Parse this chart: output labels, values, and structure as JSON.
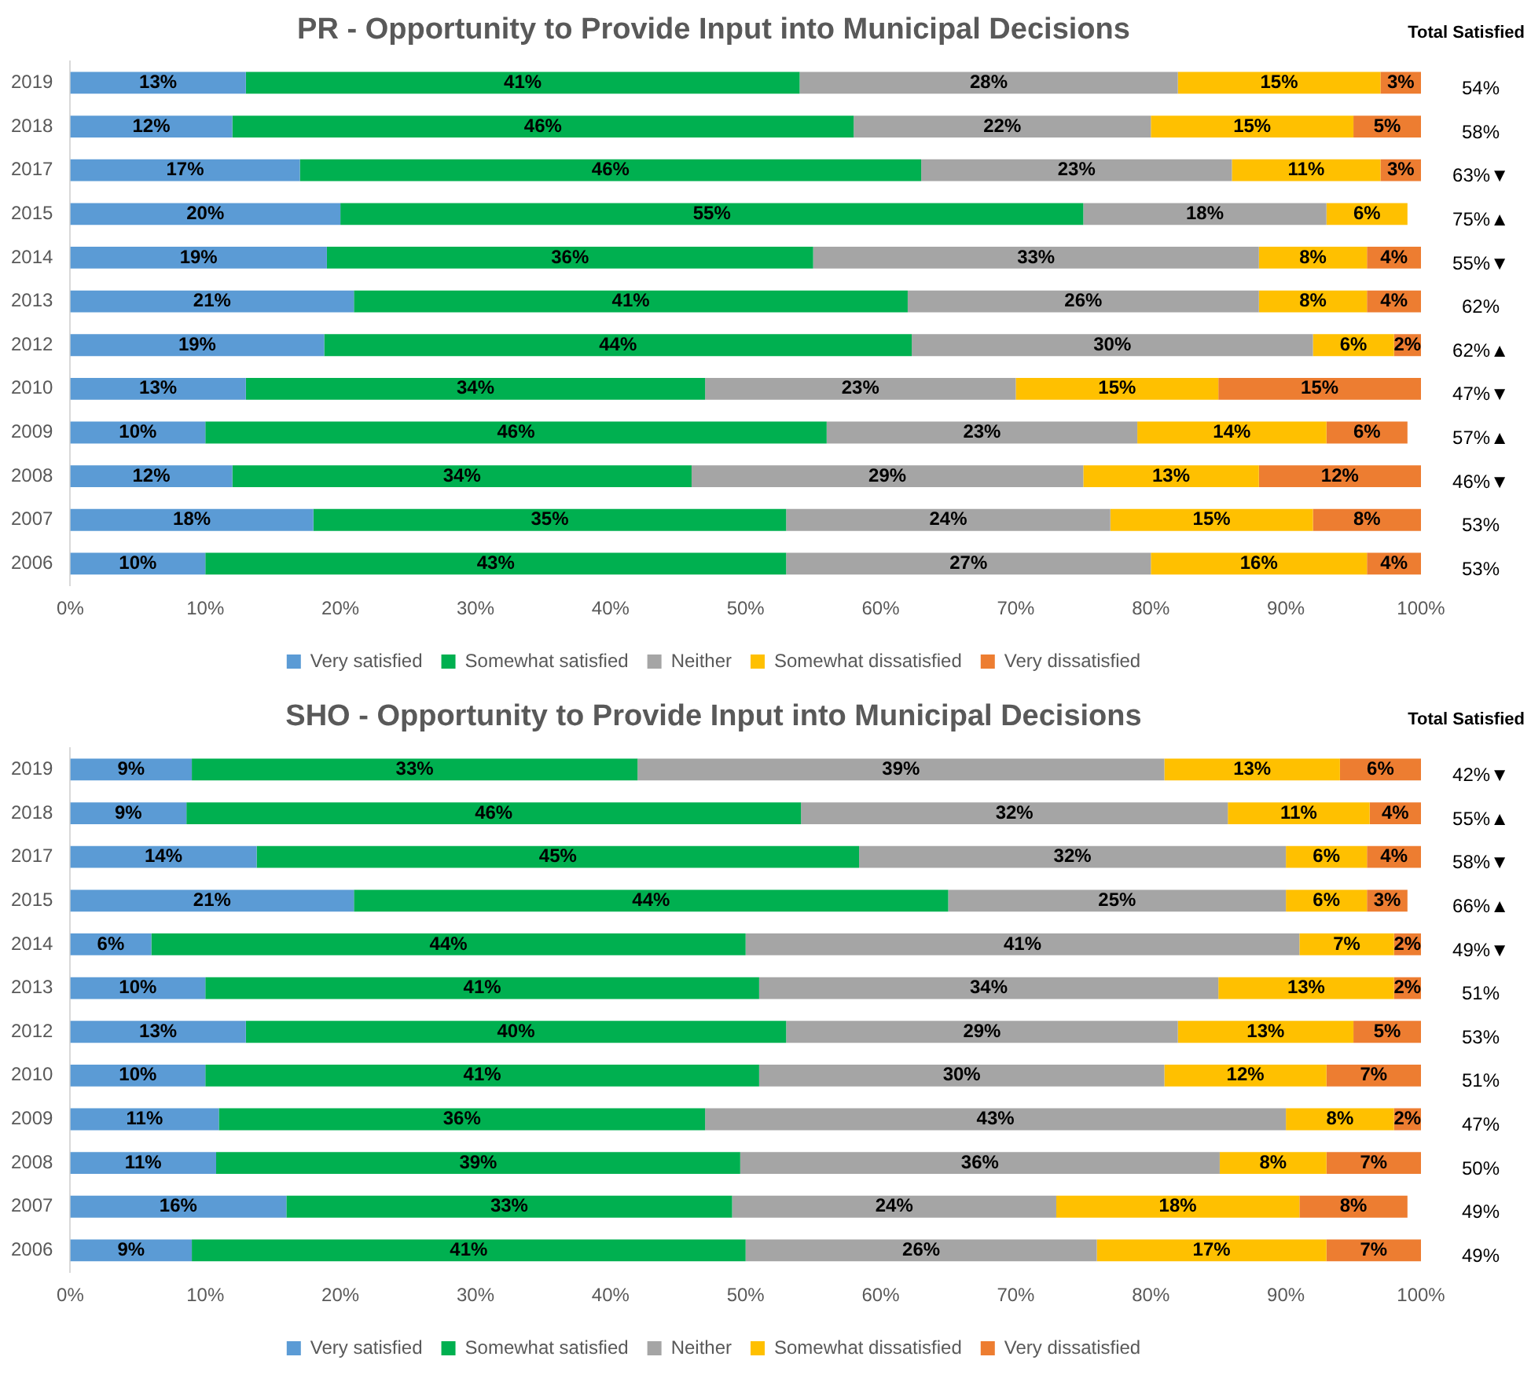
{
  "chart_data": [
    {
      "type": "bar",
      "title": "PR - Opportunity to Provide Input into Municipal Decisions",
      "orientation": "horizontal",
      "stacked": true,
      "legend": "bottom",
      "categories": [
        "2019",
        "2018",
        "2017",
        "2015",
        "2014",
        "2013",
        "2012",
        "2010",
        "2009",
        "2008",
        "2007",
        "2006"
      ],
      "series": [
        {
          "name": "Very satisfied",
          "color": "#5b9bd5",
          "values": [
            13,
            12,
            17,
            20,
            19,
            21,
            18.8,
            13,
            10,
            12,
            18,
            10
          ],
          "value_labels": [
            "13%",
            "12%",
            "17%",
            "20%",
            "19%",
            "21%",
            "19%",
            "13%",
            "10%",
            "12%",
            "18%",
            "10%"
          ]
        },
        {
          "name": "Somewhat satisfied",
          "color": "#00b050",
          "values": [
            41,
            46,
            46,
            55,
            36,
            41,
            43.5,
            34,
            46,
            34,
            35,
            43
          ],
          "value_labels": [
            "41%",
            "46%",
            "46%",
            "55%",
            "36%",
            "41%",
            "44%",
            "34%",
            "46%",
            "34%",
            "35%",
            "43%"
          ]
        },
        {
          "name": "Neither",
          "color": "#a5a5a5",
          "values": [
            28,
            22,
            23,
            18,
            33,
            26,
            29.7,
            23,
            23,
            29,
            24,
            27
          ],
          "value_labels": [
            "28%",
            "22%",
            "23%",
            "18%",
            "33%",
            "26%",
            "30%",
            "23%",
            "23%",
            "29%",
            "24%",
            "27%"
          ]
        },
        {
          "name": "Somewhat dissatisfied",
          "color": "#ffc000",
          "values": [
            15,
            15,
            11,
            6,
            8,
            8,
            6,
            15,
            14,
            13,
            15,
            16
          ],
          "value_labels": [
            "15%",
            "15%",
            "11%",
            "6%",
            "8%",
            "8%",
            "6%",
            "15%",
            "14%",
            "13%",
            "15%",
            "16%"
          ]
        },
        {
          "name": "Very dissatisfied",
          "color": "#ed7d31",
          "values": [
            3,
            5,
            3,
            null,
            4,
            4,
            2,
            15,
            6,
            12,
            8,
            4
          ],
          "value_labels": [
            "3%",
            "5%",
            "3%",
            null,
            "4%",
            "4%",
            "2%",
            "15%",
            "6%",
            "12%",
            "8%",
            "4%"
          ]
        }
      ],
      "xlim": [
        0,
        100
      ],
      "xticks": [
        {
          "value": 0,
          "label": "0%"
        },
        {
          "value": 10,
          "label": "10%"
        },
        {
          "value": 20,
          "label": "20%"
        },
        {
          "value": 30,
          "label": "30%"
        },
        {
          "value": 40,
          "label": "40%"
        },
        {
          "value": 50,
          "label": "50%"
        },
        {
          "value": 60,
          "label": "60%"
        },
        {
          "value": 70,
          "label": "70%"
        },
        {
          "value": 80,
          "label": "80%"
        },
        {
          "value": 90,
          "label": "90%"
        },
        {
          "value": 100,
          "label": "100%"
        }
      ],
      "annotations": [
        "Total Satisfied",
        "54%",
        "58%",
        "63%▼",
        "75%▲",
        "55%▼",
        "62%",
        "62%▲",
        "47%▼",
        "57%▲",
        "46%▼",
        "53%",
        "53%"
      ]
    },
    {
      "type": "bar",
      "title": "SHO - Opportunity to Provide Input into Municipal Decisions",
      "orientation": "horizontal",
      "stacked": true,
      "legend": "bottom",
      "categories": [
        "2019",
        "2018",
        "2017",
        "2015",
        "2014",
        "2013",
        "2012",
        "2010",
        "2009",
        "2008",
        "2007",
        "2006"
      ],
      "series": [
        {
          "name": "Very satisfied",
          "color": "#5b9bd5",
          "values": [
            9,
            8.6,
            13.8,
            21,
            6,
            10,
            13,
            10,
            11,
            10.8,
            16,
            9
          ],
          "value_labels": [
            "9%",
            "9%",
            "14%",
            "21%",
            "6%",
            "10%",
            "13%",
            "10%",
            "11%",
            "11%",
            "16%",
            "9%"
          ]
        },
        {
          "name": "Somewhat satisfied",
          "color": "#00b050",
          "values": [
            33,
            45.5,
            44.6,
            44,
            44,
            41,
            40,
            41,
            36,
            38.8,
            33,
            41
          ],
          "value_labels": [
            "33%",
            "46%",
            "45%",
            "44%",
            "44%",
            "41%",
            "40%",
            "41%",
            "36%",
            "39%",
            "33%",
            "41%"
          ]
        },
        {
          "name": "Neither",
          "color": "#a5a5a5",
          "values": [
            39,
            31.6,
            31.6,
            25,
            41,
            34,
            29,
            30,
            43,
            35.5,
            24,
            26
          ],
          "value_labels": [
            "39%",
            "32%",
            "32%",
            "25%",
            "41%",
            "34%",
            "29%",
            "30%",
            "43%",
            "36%",
            "24%",
            "26%"
          ]
        },
        {
          "name": "Somewhat dissatisfied",
          "color": "#ffc000",
          "values": [
            13,
            10.5,
            6,
            6,
            7,
            13,
            13,
            12,
            8,
            7.9,
            18,
            17
          ],
          "value_labels": [
            "13%",
            "11%",
            "6%",
            "6%",
            "7%",
            "13%",
            "13%",
            "12%",
            "8%",
            "8%",
            "18%",
            "17%"
          ]
        },
        {
          "name": "Very dissatisfied",
          "color": "#ed7d31",
          "values": [
            6,
            3.8,
            4,
            3,
            2,
            2,
            5,
            7,
            2,
            7,
            8,
            7
          ],
          "value_labels": [
            "6%",
            "4%",
            "4%",
            "3%",
            "2%",
            "2%",
            "5%",
            "7%",
            "2%",
            "7%",
            "8%",
            "7%"
          ]
        }
      ],
      "xlim": [
        0,
        100
      ],
      "xticks": [
        {
          "value": 0,
          "label": "0%"
        },
        {
          "value": 10,
          "label": "10%"
        },
        {
          "value": 20,
          "label": "20%"
        },
        {
          "value": 30,
          "label": "30%"
        },
        {
          "value": 40,
          "label": "40%"
        },
        {
          "value": 50,
          "label": "50%"
        },
        {
          "value": 60,
          "label": "60%"
        },
        {
          "value": 70,
          "label": "70%"
        },
        {
          "value": 80,
          "label": "80%"
        },
        {
          "value": 90,
          "label": "90%"
        },
        {
          "value": 100,
          "label": "100%"
        }
      ],
      "annotations": [
        "Total Satisfied",
        "42%▼",
        "55%▲",
        "58%▼",
        "66%▲",
        "49%▼",
        "51%",
        "53%",
        "51%",
        "47%",
        "50%",
        "49%",
        "49%"
      ]
    }
  ]
}
